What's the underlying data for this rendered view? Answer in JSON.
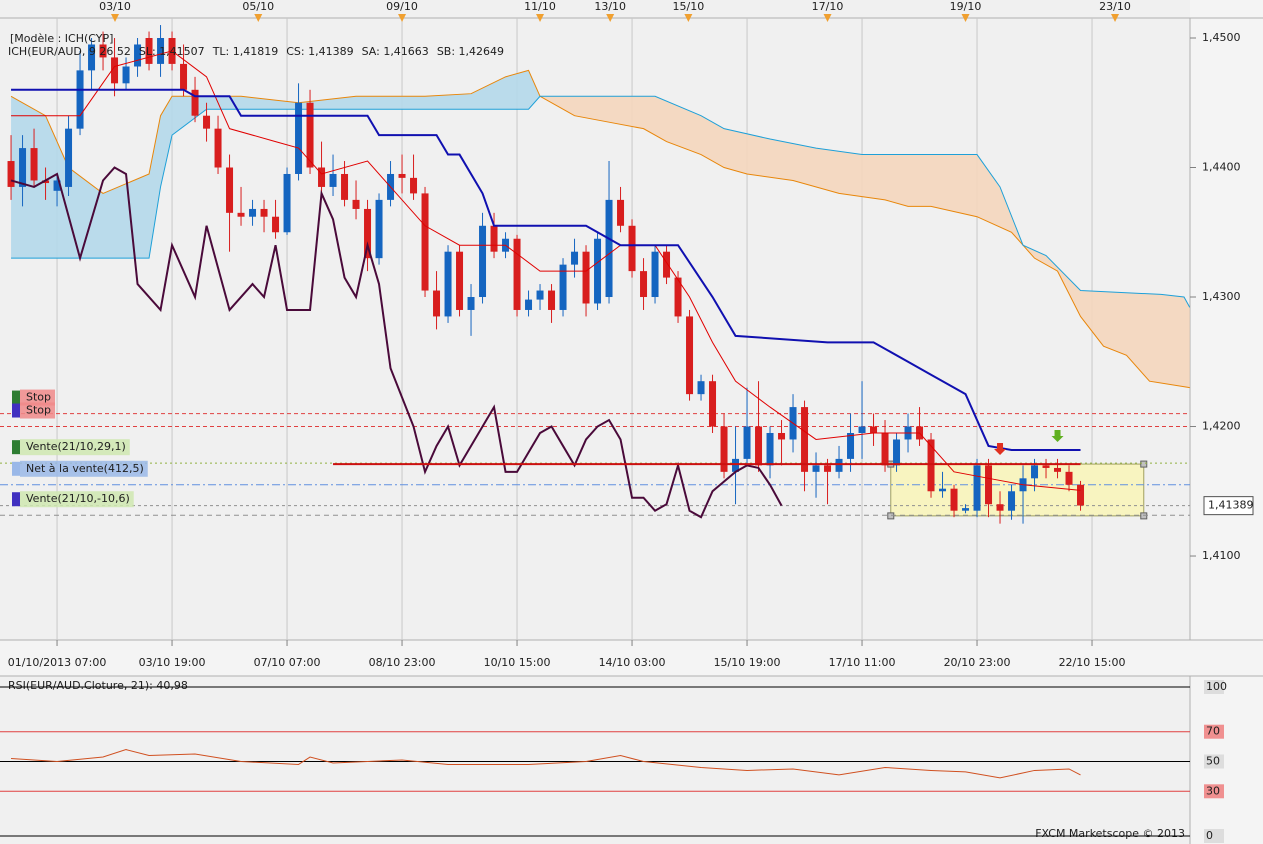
{
  "chart_data": [
    {
      "type": "candlestick",
      "header": "[Modèle : ICH(CYP]",
      "legend": [
        {
          "text": "ICH(EUR/AUD, 9 26 52",
          "color": "#e00000"
        },
        {
          "text": "SL: 1,41507",
          "color": "#e00000"
        },
        {
          "text": "TL: 1,41819",
          "color": "#1010b0"
        },
        {
          "text": "CS: 1,41389",
          "color": "#5a0a3a"
        },
        {
          "text": "SA: 1,41663",
          "color": "#e8860a"
        },
        {
          "text": "SB: 1,42649",
          "color": "#1ea0d8"
        }
      ],
      "up_color": "#1565c0",
      "down_color": "#d81e1e",
      "open": [
        1.4405,
        1.4385,
        1.4415,
        1.439,
        1.4382,
        1.4385,
        1.443,
        1.4475,
        1.4495,
        1.4485,
        1.4465,
        1.4478,
        1.45,
        1.448,
        1.45,
        1.448,
        1.446,
        1.444,
        1.443,
        1.44,
        1.4365,
        1.4362,
        1.4368,
        1.4362,
        1.435,
        1.4395,
        1.445,
        1.44,
        1.4385,
        1.4395,
        1.4375,
        1.4368,
        1.433,
        1.4375,
        1.4395,
        1.4392,
        1.438,
        1.4305,
        1.4285,
        1.4335,
        1.429,
        1.43,
        1.4355,
        1.4335,
        1.4345,
        1.429,
        1.4298,
        1.4305,
        1.429,
        1.4325,
        1.4335,
        1.4295,
        1.43,
        1.4375,
        1.4355,
        1.432,
        1.43,
        1.4335,
        1.4315,
        1.4285,
        1.4225,
        1.4235,
        1.42,
        1.4165,
        1.4175,
        1.42,
        1.417,
        1.4195,
        1.419,
        1.4215,
        1.4165,
        1.417,
        1.4165,
        1.4175,
        1.4195,
        1.42,
        1.4195,
        1.417,
        1.419,
        1.42,
        1.419,
        1.415,
        1.4152,
        1.4135,
        1.4135,
        1.417,
        1.414,
        1.4135,
        1.415,
        1.416,
        1.417,
        1.4168,
        1.4165,
        1.4155
      ],
      "high": [
        1.4425,
        1.4425,
        1.443,
        1.44,
        1.4395,
        1.444,
        1.449,
        1.45,
        1.4505,
        1.45,
        1.4485,
        1.45,
        1.4505,
        1.451,
        1.4505,
        1.4495,
        1.447,
        1.445,
        1.444,
        1.441,
        1.4385,
        1.4375,
        1.4375,
        1.4375,
        1.44,
        1.4465,
        1.446,
        1.442,
        1.441,
        1.4405,
        1.439,
        1.4375,
        1.438,
        1.4405,
        1.441,
        1.441,
        1.4385,
        1.432,
        1.434,
        1.434,
        1.431,
        1.4365,
        1.4365,
        1.435,
        1.4348,
        1.4305,
        1.431,
        1.431,
        1.433,
        1.4345,
        1.434,
        1.435,
        1.4405,
        1.4385,
        1.436,
        1.433,
        1.434,
        1.434,
        1.432,
        1.429,
        1.424,
        1.424,
        1.421,
        1.42,
        1.423,
        1.4235,
        1.42,
        1.4205,
        1.4225,
        1.422,
        1.418,
        1.4175,
        1.4185,
        1.421,
        1.4235,
        1.421,
        1.4205,
        1.4195,
        1.421,
        1.4215,
        1.4195,
        1.4165,
        1.4155,
        1.414,
        1.4175,
        1.4175,
        1.415,
        1.4155,
        1.417,
        1.4175,
        1.4175,
        1.4175,
        1.417,
        1.4158
      ],
      "low": [
        1.4375,
        1.437,
        1.4385,
        1.4375,
        1.437,
        1.4378,
        1.4425,
        1.446,
        1.4475,
        1.4455,
        1.446,
        1.447,
        1.4475,
        1.447,
        1.4475,
        1.4455,
        1.4435,
        1.442,
        1.4395,
        1.4335,
        1.4355,
        1.4355,
        1.435,
        1.4345,
        1.4348,
        1.439,
        1.4395,
        1.4375,
        1.4378,
        1.437,
        1.436,
        1.432,
        1.4325,
        1.437,
        1.438,
        1.4375,
        1.43,
        1.4275,
        1.428,
        1.4285,
        1.427,
        1.4295,
        1.433,
        1.433,
        1.4285,
        1.4285,
        1.429,
        1.428,
        1.4285,
        1.4315,
        1.4285,
        1.429,
        1.4295,
        1.435,
        1.4315,
        1.429,
        1.4295,
        1.431,
        1.428,
        1.422,
        1.422,
        1.4195,
        1.416,
        1.414,
        1.417,
        1.4165,
        1.416,
        1.417,
        1.418,
        1.415,
        1.4145,
        1.414,
        1.416,
        1.4165,
        1.4175,
        1.4185,
        1.4165,
        1.4165,
        1.418,
        1.4185,
        1.4145,
        1.4145,
        1.413,
        1.4133,
        1.413,
        1.413,
        1.4125,
        1.4128,
        1.4125,
        1.415,
        1.416,
        1.416,
        1.415,
        1.4135
      ],
      "close": [
        1.4385,
        1.4415,
        1.439,
        1.4388,
        1.439,
        1.443,
        1.4475,
        1.4495,
        1.4485,
        1.4465,
        1.4478,
        1.4495,
        1.448,
        1.45,
        1.448,
        1.446,
        1.444,
        1.443,
        1.44,
        1.4365,
        1.4362,
        1.4368,
        1.4362,
        1.435,
        1.4395,
        1.445,
        1.44,
        1.4385,
        1.4395,
        1.4375,
        1.4368,
        1.433,
        1.4375,
        1.4395,
        1.4392,
        1.438,
        1.4305,
        1.4285,
        1.4335,
        1.429,
        1.43,
        1.4355,
        1.4335,
        1.4345,
        1.429,
        1.4298,
        1.4305,
        1.429,
        1.4325,
        1.4335,
        1.4295,
        1.4345,
        1.4375,
        1.4355,
        1.432,
        1.43,
        1.4335,
        1.4315,
        1.4285,
        1.4225,
        1.4235,
        1.42,
        1.4165,
        1.4175,
        1.42,
        1.417,
        1.4195,
        1.419,
        1.4215,
        1.4165,
        1.417,
        1.4165,
        1.4175,
        1.4195,
        1.42,
        1.4195,
        1.417,
        1.419,
        1.42,
        1.419,
        1.415,
        1.4152,
        1.4135,
        1.4137,
        1.417,
        1.414,
        1.4135,
        1.415,
        1.416,
        1.417,
        1.4168,
        1.4165,
        1.4155,
        1.4139
      ],
      "xlim": [
        -0.96,
        102.52
      ],
      "xticks": [
        {
          "value": 4,
          "label": "01/10/2013 07:00"
        },
        {
          "value": 14,
          "label": "03/10 19:00"
        },
        {
          "value": 24,
          "label": "07/10 07:00"
        },
        {
          "value": 34,
          "label": "08/10 23:00"
        },
        {
          "value": 44,
          "label": "10/10 15:00"
        },
        {
          "value": 54,
          "label": "14/10 03:00"
        },
        {
          "value": 64,
          "label": "15/10 19:00"
        },
        {
          "value": 74,
          "label": "17/10 11:00"
        },
        {
          "value": 84,
          "label": "20/10 23:00"
        },
        {
          "value": 94,
          "label": "22/10 15:00"
        }
      ],
      "top_ticks": [
        {
          "value": 9.04,
          "label": "03/10"
        },
        {
          "value": 21.5,
          "label": "05/10"
        },
        {
          "value": 34,
          "label": "09/10"
        },
        {
          "value": 46,
          "label": "11/10"
        },
        {
          "value": 52.1,
          "label": "13/10"
        },
        {
          "value": 58.9,
          "label": "15/10"
        },
        {
          "value": 71,
          "label": "17/10"
        },
        {
          "value": 83,
          "label": "19/10"
        },
        {
          "value": 96,
          "label": "23/10"
        }
      ],
      "ylim": [
        1.40367,
        1.45139
      ],
      "yticks": [
        {
          "value": 1.41,
          "label": "1,4100"
        },
        {
          "value": 1.42,
          "label": "1,4200"
        },
        {
          "value": 1.43,
          "label": "1,4300"
        },
        {
          "value": 1.44,
          "label": "1,4400"
        },
        {
          "value": 1.45,
          "label": "1,4500"
        }
      ],
      "grid": true,
      "cloud": {
        "up_fill": "#b4d8ea",
        "down_fill": "#f4d6bc",
        "a": {
          "color": "#e8860a",
          "x": [
            0,
            3,
            5,
            8,
            12,
            13,
            14,
            20,
            25,
            30,
            36,
            40,
            43,
            45,
            46,
            48,
            49,
            52,
            55,
            57,
            60,
            62,
            64,
            68,
            72,
            76,
            78,
            80,
            84,
            87,
            89,
            91,
            93,
            95,
            97,
            99,
            102.5
          ],
          "values": [
            1.4455,
            1.444,
            1.44,
            1.438,
            1.4395,
            1.444,
            1.4455,
            1.4455,
            1.445,
            1.4455,
            1.4455,
            1.4457,
            1.447,
            1.4475,
            1.4455,
            1.4445,
            1.444,
            1.4435,
            1.443,
            1.442,
            1.441,
            1.44,
            1.4395,
            1.439,
            1.438,
            1.4375,
            1.437,
            1.437,
            1.4362,
            1.435,
            1.433,
            1.432,
            1.4285,
            1.4262,
            1.4255,
            1.4235,
            1.423
          ]
        },
        "b": {
          "color": "#1ea0d8",
          "x": [
            0,
            12,
            13,
            14,
            17,
            30,
            45,
            46,
            56,
            60,
            62,
            66,
            70,
            74,
            84,
            86,
            88,
            90,
            93,
            100,
            102,
            102.5
          ],
          "values": [
            1.433,
            1.433,
            1.4385,
            1.4425,
            1.4445,
            1.4445,
            1.4445,
            1.4455,
            1.4455,
            1.444,
            1.443,
            1.4422,
            1.4415,
            1.441,
            1.441,
            1.4385,
            1.434,
            1.4332,
            1.4305,
            1.4302,
            1.43,
            1.4292
          ]
        }
      },
      "lines": [
        {
          "color": "#e00000",
          "weight": "thin",
          "x": [
            0,
            6,
            9,
            14,
            17,
            19,
            23,
            25,
            27,
            31,
            33,
            36,
            39,
            43,
            46,
            50,
            53,
            56,
            59,
            61,
            63,
            66,
            70,
            75,
            79,
            82,
            85,
            88,
            93
          ],
          "values": [
            1.444,
            1.444,
            1.4478,
            1.449,
            1.447,
            1.443,
            1.442,
            1.4415,
            1.4395,
            1.4405,
            1.4385,
            1.4355,
            1.434,
            1.434,
            1.432,
            1.432,
            1.434,
            1.434,
            1.43,
            1.4265,
            1.4235,
            1.4215,
            1.419,
            1.4195,
            1.4195,
            1.4165,
            1.416,
            1.4155,
            1.41507
          ]
        },
        {
          "color": "#1010b0",
          "weight": "bold",
          "x": [
            0,
            15,
            16,
            19,
            20,
            31,
            32,
            37,
            38,
            39,
            41,
            42,
            50,
            53,
            58,
            61,
            63,
            71,
            75,
            78,
            80,
            83,
            85,
            87,
            93
          ],
          "values": [
            1.446,
            1.446,
            1.4455,
            1.4455,
            1.444,
            1.444,
            1.4425,
            1.4425,
            1.441,
            1.441,
            1.438,
            1.4355,
            1.4355,
            1.434,
            1.434,
            1.43,
            1.427,
            1.4265,
            1.4265,
            1.425,
            1.424,
            1.4225,
            1.4185,
            1.41819,
            1.41819
          ]
        },
        {
          "color": "#4a0a3a",
          "weight": "bold",
          "x": [
            0,
            2,
            4,
            6,
            8,
            9,
            10,
            11,
            13,
            14,
            16,
            17,
            19,
            21,
            22,
            23,
            24,
            26,
            27,
            28,
            29,
            30,
            31,
            32,
            33,
            35,
            36,
            37,
            38,
            39,
            41,
            42,
            43,
            44,
            45,
            46,
            47,
            48,
            49,
            50,
            51,
            52,
            53,
            54,
            55,
            56,
            57,
            58,
            59,
            60,
            61,
            63,
            64,
            65,
            66,
            67
          ],
          "values": [
            1.439,
            1.4385,
            1.4395,
            1.433,
            1.439,
            1.44,
            1.4395,
            1.431,
            1.429,
            1.434,
            1.43,
            1.4355,
            1.429,
            1.431,
            1.43,
            1.434,
            1.429,
            1.429,
            1.438,
            1.436,
            1.4315,
            1.43,
            1.434,
            1.431,
            1.4245,
            1.42,
            1.4165,
            1.4185,
            1.42,
            1.417,
            1.42,
            1.4215,
            1.4165,
            1.4165,
            1.418,
            1.4195,
            1.42,
            1.4185,
            1.417,
            1.419,
            1.42,
            1.4205,
            1.419,
            1.4145,
            1.4145,
            1.4135,
            1.414,
            1.417,
            1.4135,
            1.413,
            1.415,
            1.4165,
            1.417,
            1.4168,
            1.4155,
            1.41389
          ]
        }
      ],
      "trend_line": {
        "color": "#cc1010",
        "x": [
          28,
          93
        ],
        "values": [
          1.4171,
          1.4171
        ]
      },
      "rectangle": {
        "fill": "#f8f4c0",
        "stroke": "#a0a060",
        "x": [
          76.5,
          98.5
        ],
        "values": [
          1.4131,
          1.4171
        ]
      },
      "signals": [
        {
          "x": 86,
          "value": 1.4178,
          "color": "#e03020"
        },
        {
          "x": 91,
          "value": 1.4188,
          "color": "#60b020"
        }
      ],
      "levels": [
        {
          "value": 1.421,
          "color": "#e04040",
          "dash": "4 3"
        },
        {
          "value": 1.42,
          "color": "#e04040",
          "dash": "4 3"
        },
        {
          "value": 1.41717,
          "color": "#90b040",
          "dash": "2 3"
        },
        {
          "value": 1.4155,
          "color": "#6090e0",
          "dash": "8 3 2 3"
        },
        {
          "value": 1.41389,
          "color": "#909090",
          "dash": "3 3"
        },
        {
          "value": 1.41315,
          "color": "#909090",
          "dash": "5 4"
        }
      ],
      "orders": [
        {
          "label": "Stop",
          "value": 1.421,
          "marker": "#2e7d32",
          "fill": "#f08a8a",
          "text": "#c01010"
        },
        {
          "label": "Stop",
          "value": 1.42,
          "marker": "#4030c0",
          "fill": "#f08a8a",
          "text": "#c01010"
        },
        {
          "label": "Vente(21/10,29,1)",
          "value": 1.41717,
          "marker": "#2e7d32",
          "fill": "#cfe8b0",
          "text": "#3a6a20"
        },
        {
          "label": "Net à la vente(412,5)",
          "value": 1.4155,
          "marker": "#9ab8e8",
          "fill": "#9ab8e8",
          "text": "#203a80"
        },
        {
          "label": "Vente(21/10,-10,6)",
          "value": 1.41315,
          "marker": "#4030c0",
          "fill": "#cfe8b0",
          "text": "#3a6a20"
        }
      ],
      "price_tag": {
        "value": 1.41389,
        "label": "1,41389"
      }
    },
    {
      "type": "line",
      "title": "RSI(EUR/AUD.Cloture, 21): 40,98",
      "color": "#d05020",
      "xlim": [
        -0.96,
        102.52
      ],
      "x": [
        0,
        4,
        8,
        10,
        12,
        16,
        20,
        25,
        26,
        28,
        34,
        38,
        45,
        50,
        53,
        55,
        60,
        64,
        68,
        72,
        76,
        80,
        83,
        86,
        89,
        92,
        93
      ],
      "values": [
        52,
        50,
        53,
        58,
        54,
        55,
        50,
        48,
        53,
        49,
        51,
        48,
        48,
        50,
        54,
        50,
        46,
        44,
        45,
        41,
        46,
        44,
        43,
        39,
        44,
        45,
        40.98
      ],
      "ylim": [
        0,
        100
      ],
      "yticks": [
        0,
        30,
        50,
        70,
        100
      ],
      "tick_colors": [
        "#000000",
        "#e04040",
        "#000000",
        "#e04040",
        "#000000"
      ],
      "footer": "FXCM Marketscope © 2013"
    }
  ]
}
